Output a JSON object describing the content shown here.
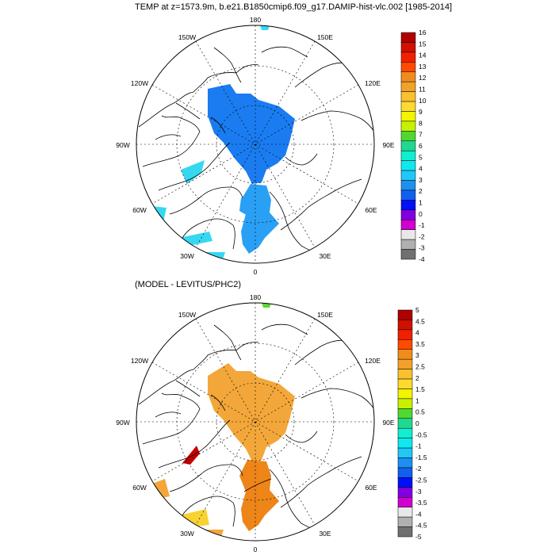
{
  "panels": [
    {
      "title": "TEMP at z=1573.9m, b.e21.B1850cmip6.f09_g17.DAMIP-hist-vlc.002 [1985-2014]",
      "lon_labels": {
        "top": "180",
        "top_left": "150W",
        "top_right": "150E",
        "upper_left": "120W",
        "upper_right": "120E",
        "left": "90W",
        "right": "90E",
        "lower_left": "60W",
        "lower_right": "60E",
        "bottom_left": "30W",
        "bottom_right": "30E",
        "bottom": "0"
      },
      "colorbar": {
        "labels": [
          "16",
          "15",
          "14",
          "13",
          "12",
          "11",
          "10",
          "9",
          "8",
          "7",
          "6",
          "5",
          "4",
          "3",
          "2",
          "1",
          "0",
          "-1",
          "-2",
          "-3",
          "-4"
        ],
        "colors": [
          "#b00000",
          "#d01000",
          "#f02000",
          "#ff4a00",
          "#f08c1c",
          "#f2a22a",
          "#f9c030",
          "#fdda30",
          "#f2f400",
          "#c8f000",
          "#50d830",
          "#20d890",
          "#10f0d0",
          "#10e8f0",
          "#20c8f8",
          "#1c90f0",
          "#1060f0",
          "#0010f8",
          "#8000e0",
          "#d000d0",
          "#e8e8e8",
          "#b0b0b0",
          "#707070"
        ]
      }
    },
    {
      "title": "(MODEL - LEVITUS/PHC2)",
      "lon_labels": {
        "top": "180",
        "top_left": "150W",
        "top_right": "150E",
        "upper_left": "120W",
        "upper_right": "120E",
        "left": "90W",
        "right": "90E",
        "lower_left": "60W",
        "lower_right": "60E",
        "bottom_left": "30W",
        "bottom_right": "30E",
        "bottom": "0"
      },
      "colorbar": {
        "labels": [
          "5",
          "4.5",
          "4",
          "3.5",
          "3",
          "2.5",
          "2",
          "1.5",
          "1",
          "0.5",
          "0",
          "-0.5",
          "-1",
          "-1.5",
          "-2",
          "-2.5",
          "-3",
          "-3.5",
          "-4",
          "-4.5",
          "-5"
        ],
        "colors": [
          "#b00000",
          "#d01000",
          "#f02000",
          "#ff4a00",
          "#f08c1c",
          "#f2a22a",
          "#f9c030",
          "#fdda30",
          "#f2f400",
          "#c8f000",
          "#50d830",
          "#20d890",
          "#10f0d0",
          "#10e8f0",
          "#20c8f8",
          "#1c90f0",
          "#1060f0",
          "#0010f8",
          "#8000e0",
          "#d000d0",
          "#e8e8e8",
          "#b0b0b0",
          "#707070"
        ]
      }
    }
  ],
  "field_colors": {
    "top_main": "#1a7cf0",
    "top_green_blue": "#36d8f0",
    "top_light": "#2aa0f5",
    "bottom_main": "#f3a73a",
    "bottom_dark": "#ed8518",
    "bottom_red": "#c80000",
    "bottom_yellow": "#f8d230",
    "bottom_green": "#5ad830"
  }
}
